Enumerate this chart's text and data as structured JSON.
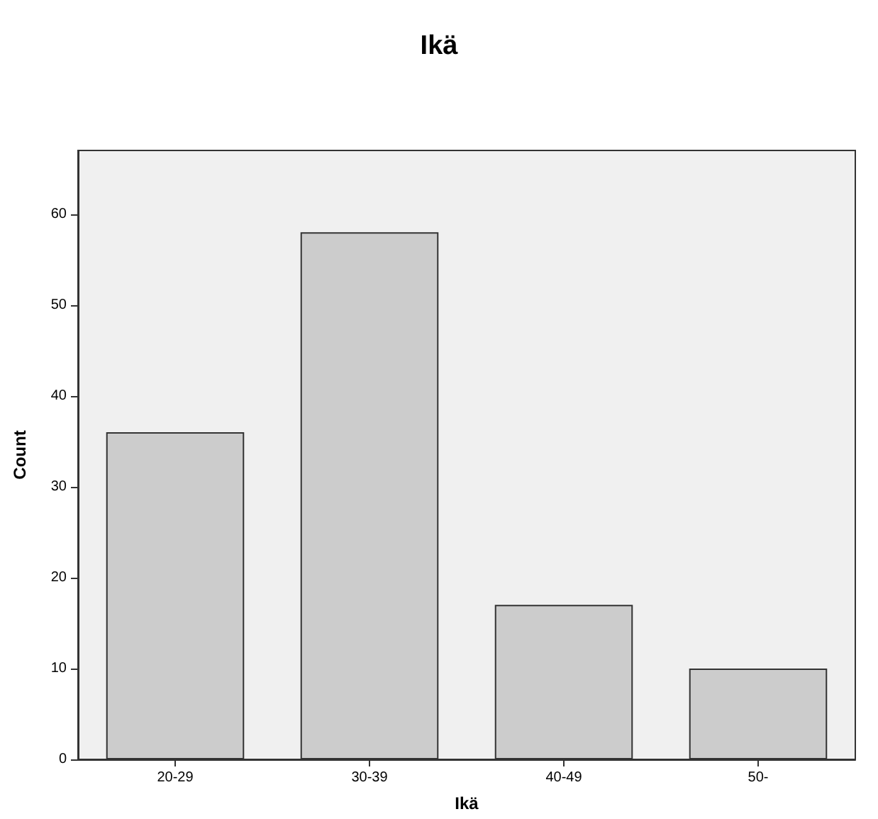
{
  "chart_data": {
    "type": "bar",
    "title": "Ikä",
    "xlabel": "Ikä",
    "ylabel": "Count",
    "categories": [
      "20-29",
      "30-39",
      "40-49",
      "50-"
    ],
    "values": [
      36,
      58,
      17,
      10
    ],
    "color": "#cccccc",
    "ylim": [
      0,
      67
    ],
    "yticks": [
      0,
      10,
      20,
      30,
      40,
      50,
      60
    ]
  }
}
